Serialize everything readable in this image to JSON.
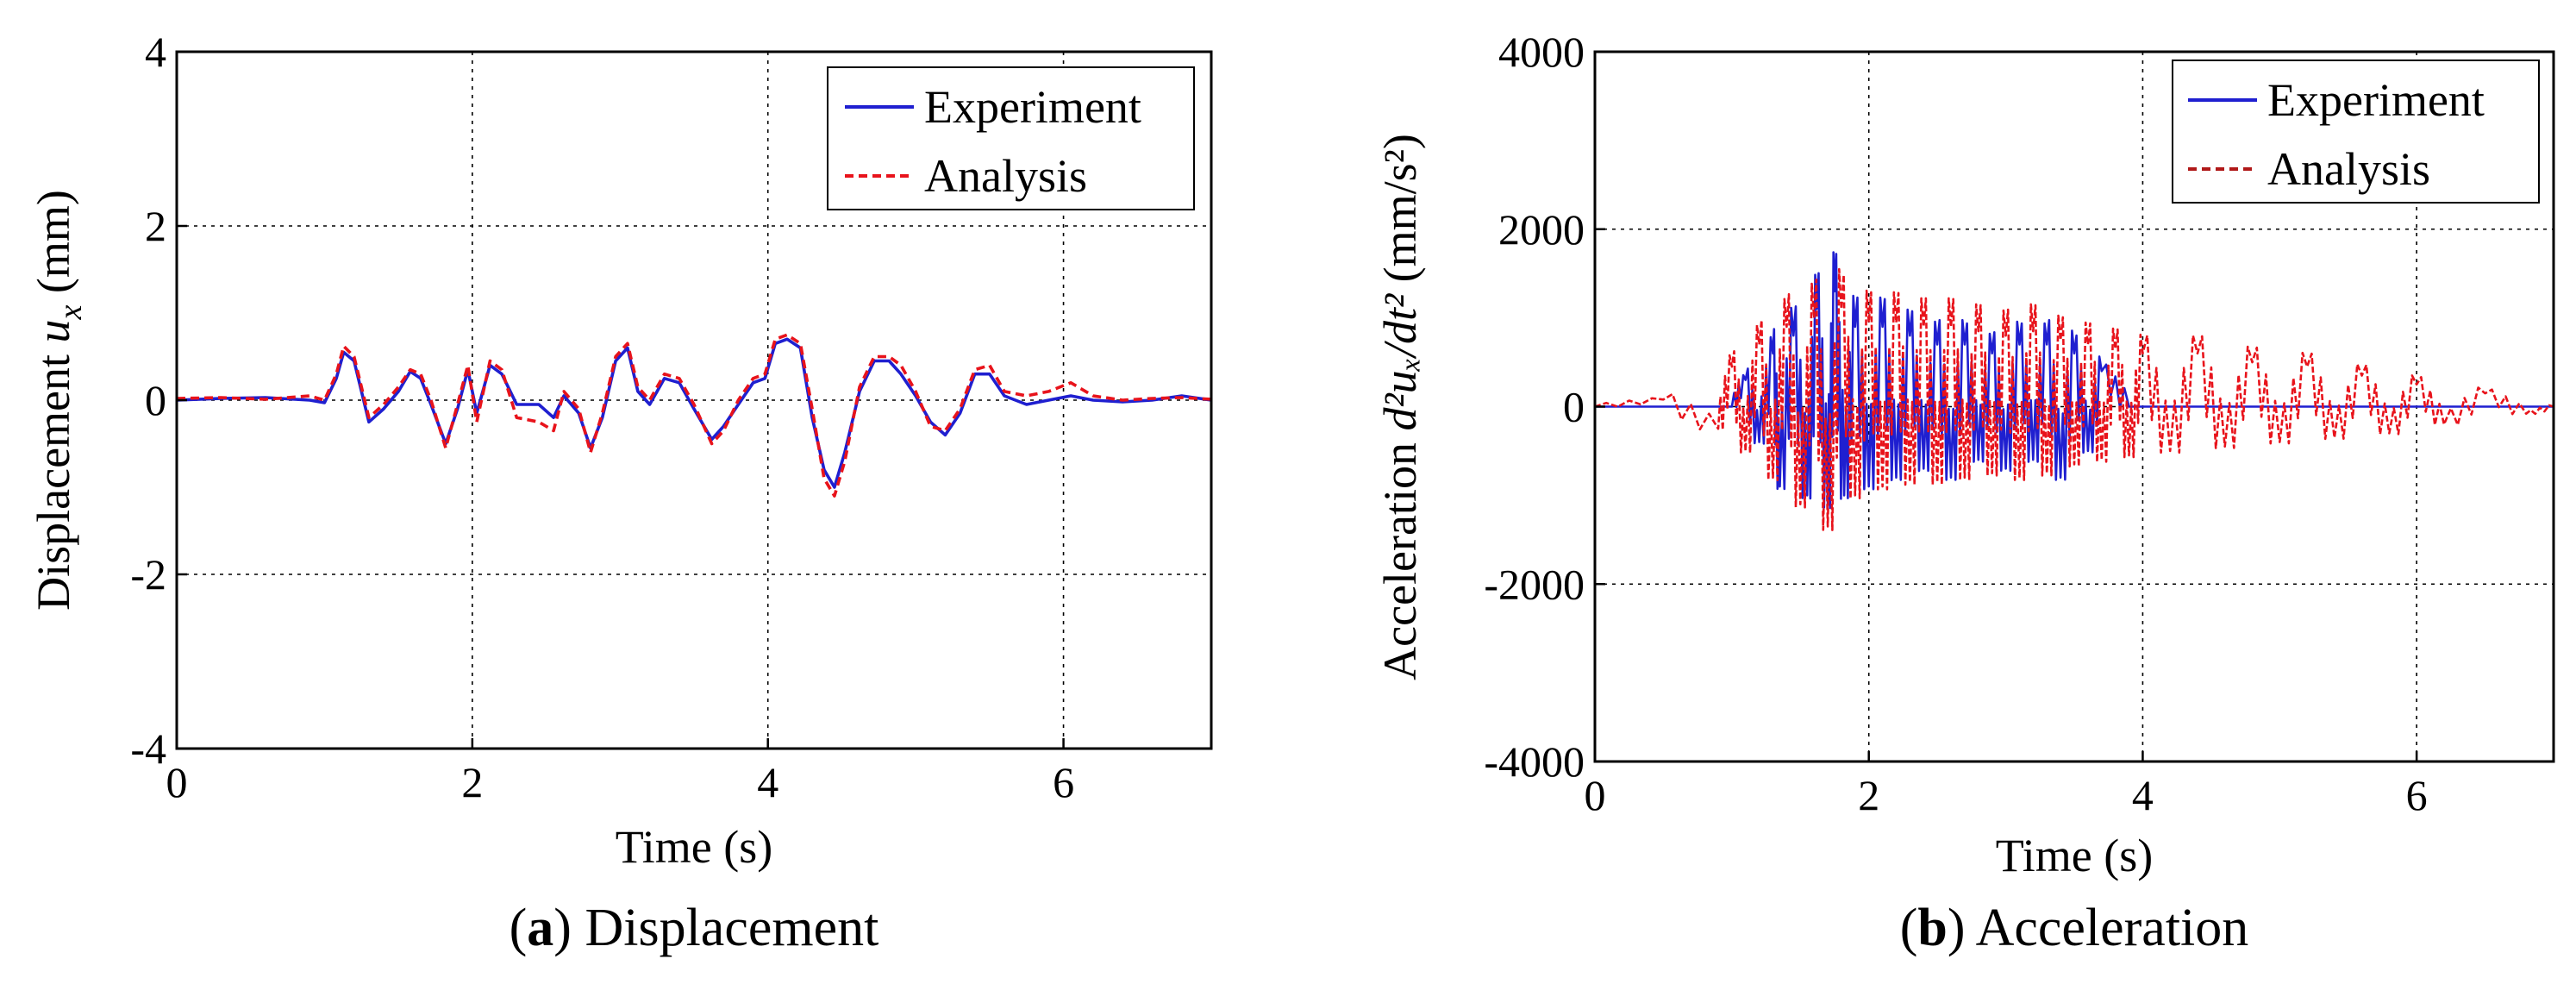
{
  "chart_data": [
    {
      "type": "line",
      "title": "",
      "caption": {
        "letter": "a",
        "text": "Displacement"
      },
      "xlabel": "Time (s)",
      "ylabel": {
        "prefix": "Displacement ",
        "var": "u",
        "sub": "x",
        "unit": " (mm)"
      },
      "xlim": [
        0,
        7
      ],
      "ylim": [
        -4,
        4
      ],
      "xticks": [
        0,
        2,
        4,
        6
      ],
      "xtick_labels": [
        "0",
        "2",
        "4",
        "6"
      ],
      "yticks": [
        -4,
        -2,
        0,
        2,
        4
      ],
      "ytick_labels": [
        "-4",
        "-2",
        "0",
        "2",
        "4"
      ],
      "grid": true,
      "legend": "top-right",
      "series": [
        {
          "name": "Experiment",
          "color": "#1f1fd0",
          "style": "solid",
          "points": [
            [
              0,
              0
            ],
            [
              0.3,
              0.02
            ],
            [
              0.6,
              0.03
            ],
            [
              0.9,
              0
            ],
            [
              1.0,
              -0.03
            ],
            [
              1.08,
              0.25
            ],
            [
              1.13,
              0.55
            ],
            [
              1.2,
              0.45
            ],
            [
              1.3,
              -0.25
            ],
            [
              1.4,
              -0.1
            ],
            [
              1.5,
              0.1
            ],
            [
              1.58,
              0.33
            ],
            [
              1.65,
              0.25
            ],
            [
              1.72,
              -0.05
            ],
            [
              1.82,
              -0.5
            ],
            [
              1.9,
              -0.1
            ],
            [
              1.97,
              0.35
            ],
            [
              2.03,
              -0.15
            ],
            [
              2.12,
              0.4
            ],
            [
              2.2,
              0.3
            ],
            [
              2.3,
              -0.05
            ],
            [
              2.45,
              -0.05
            ],
            [
              2.55,
              -0.2
            ],
            [
              2.62,
              0.05
            ],
            [
              2.72,
              -0.15
            ],
            [
              2.8,
              -0.55
            ],
            [
              2.88,
              -0.2
            ],
            [
              2.97,
              0.45
            ],
            [
              3.05,
              0.6
            ],
            [
              3.12,
              0.1
            ],
            [
              3.2,
              -0.05
            ],
            [
              3.3,
              0.25
            ],
            [
              3.4,
              0.2
            ],
            [
              3.5,
              -0.1
            ],
            [
              3.62,
              -0.45
            ],
            [
              3.7,
              -0.3
            ],
            [
              3.8,
              -0.05
            ],
            [
              3.9,
              0.2
            ],
            [
              3.98,
              0.25
            ],
            [
              4.05,
              0.65
            ],
            [
              4.13,
              0.7
            ],
            [
              4.22,
              0.6
            ],
            [
              4.3,
              -0.2
            ],
            [
              4.38,
              -0.8
            ],
            [
              4.45,
              -1.0
            ],
            [
              4.52,
              -0.6
            ],
            [
              4.62,
              0.1
            ],
            [
              4.72,
              0.45
            ],
            [
              4.82,
              0.45
            ],
            [
              4.9,
              0.3
            ],
            [
              5.0,
              0.05
            ],
            [
              5.1,
              -0.25
            ],
            [
              5.2,
              -0.4
            ],
            [
              5.3,
              -0.15
            ],
            [
              5.4,
              0.3
            ],
            [
              5.5,
              0.3
            ],
            [
              5.6,
              0.05
            ],
            [
              5.75,
              -0.05
            ],
            [
              5.9,
              0
            ],
            [
              6.05,
              0.05
            ],
            [
              6.2,
              0
            ],
            [
              6.4,
              -0.02
            ],
            [
              6.6,
              0
            ],
            [
              6.8,
              0.05
            ],
            [
              7.0,
              0
            ]
          ]
        },
        {
          "name": "Analysis",
          "color": "#e8131b",
          "style": "dashed",
          "points": [
            [
              0,
              0.02
            ],
            [
              0.3,
              0.03
            ],
            [
              0.6,
              0.01
            ],
            [
              0.9,
              0.05
            ],
            [
              1.0,
              0
            ],
            [
              1.08,
              0.3
            ],
            [
              1.13,
              0.62
            ],
            [
              1.2,
              0.5
            ],
            [
              1.3,
              -0.2
            ],
            [
              1.4,
              -0.05
            ],
            [
              1.5,
              0.15
            ],
            [
              1.58,
              0.35
            ],
            [
              1.65,
              0.3
            ],
            [
              1.72,
              0
            ],
            [
              1.82,
              -0.55
            ],
            [
              1.9,
              -0.05
            ],
            [
              1.97,
              0.4
            ],
            [
              2.03,
              -0.25
            ],
            [
              2.12,
              0.45
            ],
            [
              2.2,
              0.35
            ],
            [
              2.3,
              -0.2
            ],
            [
              2.45,
              -0.25
            ],
            [
              2.55,
              -0.35
            ],
            [
              2.62,
              0.1
            ],
            [
              2.72,
              -0.1
            ],
            [
              2.8,
              -0.6
            ],
            [
              2.88,
              -0.15
            ],
            [
              2.97,
              0.5
            ],
            [
              3.05,
              0.65
            ],
            [
              3.12,
              0.15
            ],
            [
              3.2,
              0
            ],
            [
              3.3,
              0.3
            ],
            [
              3.4,
              0.25
            ],
            [
              3.5,
              -0.05
            ],
            [
              3.62,
              -0.5
            ],
            [
              3.7,
              -0.35
            ],
            [
              3.8,
              0
            ],
            [
              3.9,
              0.25
            ],
            [
              3.98,
              0.3
            ],
            [
              4.05,
              0.7
            ],
            [
              4.13,
              0.75
            ],
            [
              4.22,
              0.65
            ],
            [
              4.3,
              -0.1
            ],
            [
              4.38,
              -0.9
            ],
            [
              4.45,
              -1.1
            ],
            [
              4.52,
              -0.7
            ],
            [
              4.62,
              0.15
            ],
            [
              4.72,
              0.5
            ],
            [
              4.82,
              0.5
            ],
            [
              4.9,
              0.4
            ],
            [
              5.0,
              0.1
            ],
            [
              5.1,
              -0.3
            ],
            [
              5.2,
              -0.35
            ],
            [
              5.3,
              -0.1
            ],
            [
              5.4,
              0.35
            ],
            [
              5.5,
              0.4
            ],
            [
              5.6,
              0.1
            ],
            [
              5.75,
              0.05
            ],
            [
              5.9,
              0.1
            ],
            [
              6.05,
              0.2
            ],
            [
              6.2,
              0.05
            ],
            [
              6.4,
              0
            ],
            [
              6.6,
              0.02
            ],
            [
              6.8,
              0.03
            ],
            [
              7.0,
              0.01
            ]
          ]
        }
      ]
    },
    {
      "type": "line",
      "title": "",
      "caption": {
        "letter": "b",
        "text": "Acceleration"
      },
      "xlabel": "Time (s)",
      "ylabel": {
        "prefix": "Acceleration ",
        "expr": "d²uₓ/dt²",
        "unit": " (mm/s²)"
      },
      "xlim": [
        0,
        7
      ],
      "ylim": [
        -4000,
        4000
      ],
      "xticks": [
        0,
        2,
        4,
        6
      ],
      "xtick_labels": [
        "0",
        "2",
        "4",
        "6"
      ],
      "yticks": [
        -4000,
        -2000,
        0,
        2000,
        4000
      ],
      "ytick_labels": [
        "-4000",
        "-2000",
        "0",
        "2000",
        "4000"
      ],
      "grid": true,
      "legend": "top-right",
      "series": [
        {
          "name": "Experiment",
          "color": "#1f1fd0",
          "style": "solid",
          "points": [
            [
              0,
              0
            ],
            [
              1.0,
              0
            ],
            [
              1.1,
              300
            ],
            [
              1.2,
              -400
            ],
            [
              1.3,
              600
            ],
            [
              1.35,
              -900
            ],
            [
              1.45,
              800
            ],
            [
              1.55,
              -1000
            ],
            [
              1.62,
              1100
            ],
            [
              1.7,
              -1100
            ],
            [
              1.75,
              1300
            ],
            [
              1.82,
              -1000
            ],
            [
              1.9,
              900
            ],
            [
              2.0,
              -900
            ],
            [
              2.1,
              900
            ],
            [
              2.2,
              -800
            ],
            [
              2.3,
              800
            ],
            [
              2.4,
              -700
            ],
            [
              2.5,
              700
            ],
            [
              2.6,
              -800
            ],
            [
              2.7,
              700
            ],
            [
              2.8,
              -600
            ],
            [
              2.9,
              600
            ],
            [
              3.0,
              -700
            ],
            [
              3.1,
              700
            ],
            [
              3.2,
              -600
            ],
            [
              3.3,
              700
            ],
            [
              3.4,
              -800
            ],
            [
              3.5,
              600
            ],
            [
              3.6,
              -500
            ],
            [
              3.7,
              400
            ],
            [
              3.9,
              0
            ],
            [
              7.0,
              0
            ]
          ]
        },
        {
          "name": "Analysis",
          "color": "#e8131b",
          "style": "dashed",
          "points": [
            [
              0,
              0
            ],
            [
              0.5,
              80
            ],
            [
              0.9,
              -250
            ],
            [
              1.0,
              450
            ],
            [
              1.1,
              -500
            ],
            [
              1.2,
              700
            ],
            [
              1.3,
              -800
            ],
            [
              1.4,
              900
            ],
            [
              1.5,
              -1100
            ],
            [
              1.6,
              1000
            ],
            [
              1.7,
              -1350
            ],
            [
              1.8,
              1100
            ],
            [
              1.9,
              -1000
            ],
            [
              2.0,
              950
            ],
            [
              2.1,
              -900
            ],
            [
              2.2,
              950
            ],
            [
              2.3,
              -850
            ],
            [
              2.4,
              900
            ],
            [
              2.5,
              -850
            ],
            [
              2.6,
              900
            ],
            [
              2.7,
              -800
            ],
            [
              2.8,
              850
            ],
            [
              2.9,
              -750
            ],
            [
              3.0,
              800
            ],
            [
              3.1,
              -800
            ],
            [
              3.2,
              850
            ],
            [
              3.3,
              -750
            ],
            [
              3.4,
              750
            ],
            [
              3.5,
              -650
            ],
            [
              3.6,
              700
            ],
            [
              3.7,
              -600
            ],
            [
              3.8,
              650
            ],
            [
              3.9,
              -550
            ],
            [
              4.0,
              600
            ],
            [
              4.2,
              -500
            ],
            [
              4.4,
              600
            ],
            [
              4.6,
              -450
            ],
            [
              4.8,
              500
            ],
            [
              5.0,
              -400
            ],
            [
              5.2,
              450
            ],
            [
              5.4,
              -350
            ],
            [
              5.6,
              350
            ],
            [
              5.8,
              -300
            ],
            [
              6.0,
              250
            ],
            [
              6.2,
              -200
            ],
            [
              6.5,
              150
            ],
            [
              6.8,
              -80
            ],
            [
              7.0,
              0
            ]
          ]
        }
      ]
    }
  ]
}
